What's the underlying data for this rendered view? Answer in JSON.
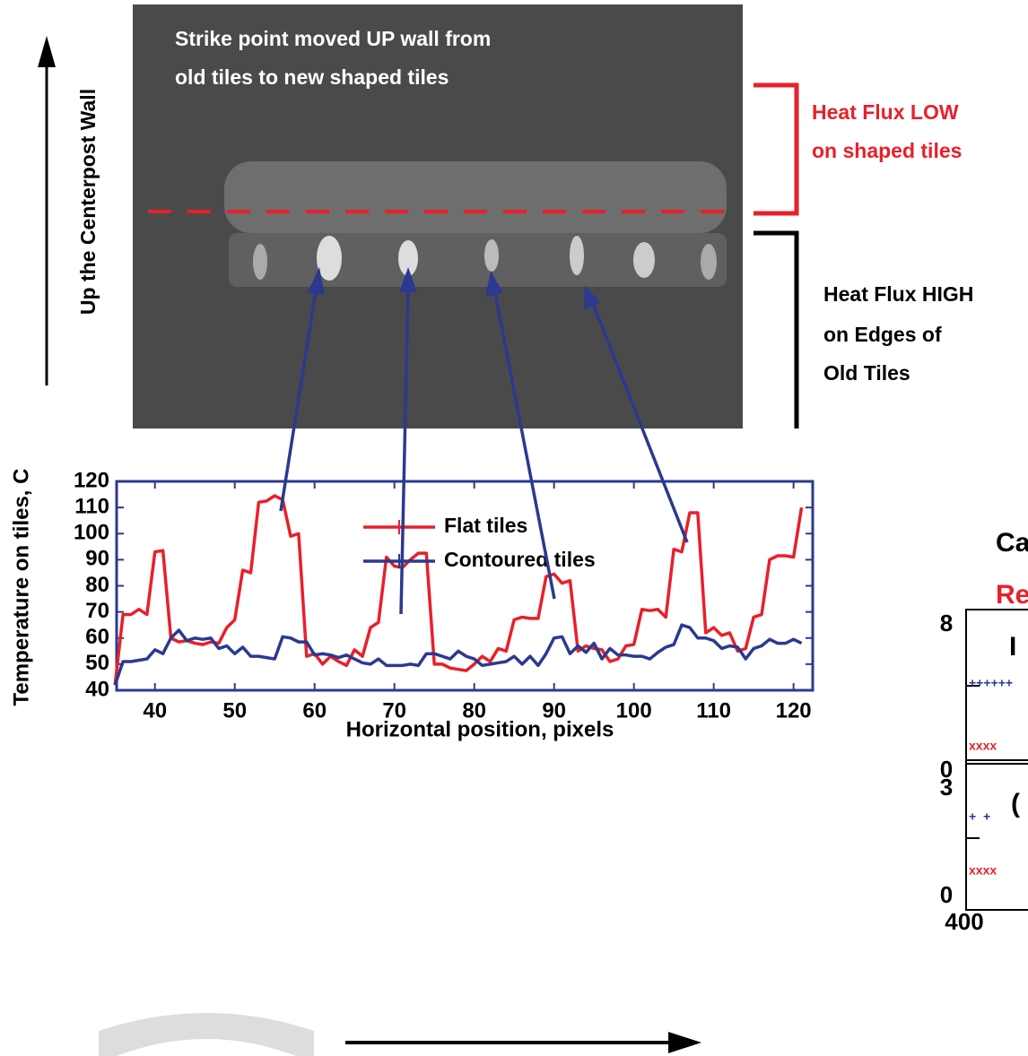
{
  "annotations": {
    "image_caption": [
      "Strike point moved UP wall from",
      "old tiles to new shaped tiles"
    ],
    "vertical_label": "Up the Centerpost Wall",
    "low_flux": [
      "Heat Flux LOW",
      "on shaped tiles"
    ],
    "high_flux": [
      "Heat Flux HIGH",
      "on Edges of",
      "Old Tiles"
    ]
  },
  "side_panel": {
    "title_lines": [
      "Ca",
      "Re"
    ],
    "tick_labels": [
      "8",
      "0",
      "3",
      "0",
      "400"
    ],
    "panel_labels": [
      "I",
      "("
    ]
  },
  "chart_data": {
    "type": "line",
    "xlabel": "Horizontal position, pixels",
    "ylabel": "Temperature on tiles, C",
    "x": [
      35,
      36,
      37,
      38,
      39,
      40,
      41,
      42,
      43,
      44,
      45,
      46,
      47,
      48,
      49,
      50,
      51,
      52,
      53,
      54,
      55,
      56,
      57,
      58,
      59,
      60,
      61,
      62,
      63,
      64,
      65,
      66,
      67,
      68,
      69,
      70,
      71,
      72,
      73,
      74,
      75,
      76,
      77,
      78,
      79,
      80,
      81,
      82,
      83,
      84,
      85,
      86,
      87,
      88,
      89,
      90,
      91,
      92,
      93,
      94,
      95,
      96,
      97,
      98,
      99,
      100,
      101,
      102,
      103,
      104,
      105,
      106,
      107,
      108,
      109,
      110,
      111,
      112,
      113,
      114,
      115,
      116,
      117,
      118,
      119,
      120,
      121
    ],
    "series": [
      {
        "name": "Flat tiles",
        "color": "#e8202a",
        "values": [
          42,
          69,
          69,
          71,
          69,
          93,
          93.5,
          60,
          58.5,
          59,
          58,
          57.5,
          58.5,
          58,
          64,
          67,
          86,
          85,
          112,
          112.5,
          114.5,
          113,
          99,
          100,
          53,
          54,
          50,
          53,
          51,
          49.5,
          55.5,
          53,
          64,
          66,
          91,
          87.5,
          87,
          90,
          92.5,
          92.5,
          50,
          50,
          48.5,
          48,
          47.5,
          50,
          53,
          51,
          56,
          55,
          67,
          68,
          67.5,
          67.5,
          83.5,
          84.5,
          81,
          82,
          55,
          57,
          56,
          55.5,
          51,
          52,
          57,
          57.5,
          71,
          70.5,
          71,
          68,
          94,
          93,
          108,
          108,
          62,
          64,
          61,
          62,
          55,
          56,
          68,
          69,
          90,
          91.5,
          91.5,
          91,
          110
        ]
      },
      {
        "name": "Contoured tiles",
        "color": "#2b3990",
        "values": [
          42,
          51,
          51,
          51.5,
          52,
          55.5,
          54,
          60,
          63,
          59,
          60,
          59.5,
          60,
          56,
          57,
          54,
          56.5,
          53,
          53,
          52.5,
          52,
          60.5,
          60,
          58.5,
          58.5,
          53.5,
          54,
          53.5,
          52.5,
          53.5,
          52,
          50.5,
          50,
          52,
          49.5,
          49.5,
          49.5,
          50,
          49.5,
          54,
          54,
          53,
          52,
          55,
          53,
          52,
          49.5,
          50,
          50.5,
          51,
          53,
          50,
          53,
          49.5,
          54,
          60,
          60.5,
          54,
          57,
          54.5,
          58,
          52,
          56,
          53.5,
          53.5,
          53,
          53,
          52,
          54.5,
          56.5,
          57.5,
          65,
          64,
          60,
          60,
          59,
          56,
          57,
          56.5,
          52,
          56,
          57,
          59.5,
          58,
          58,
          59.5,
          58
        ]
      }
    ],
    "xlim": [
      35.2,
      122.4
    ],
    "ylim": [
      40,
      120
    ],
    "xticks": [
      40,
      50,
      60,
      70,
      80,
      90,
      100,
      110,
      120
    ],
    "yticks": [
      40,
      50,
      60,
      70,
      80,
      90,
      100,
      110,
      120
    ]
  }
}
